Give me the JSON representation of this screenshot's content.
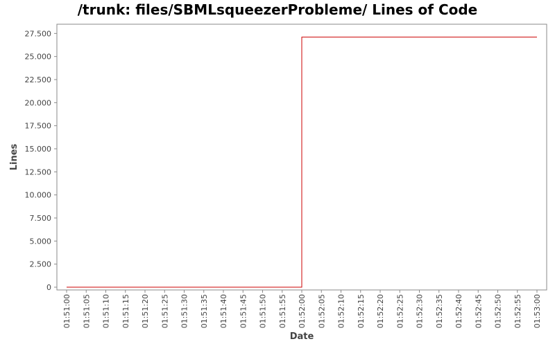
{
  "chart_data": {
    "type": "line",
    "title": "/trunk: files/SBMLsqueezerProbleme/ Lines of Code",
    "xlabel": "Date",
    "ylabel": "Lines",
    "x_ticks": [
      "01:51:00",
      "01:51:05",
      "01:51:10",
      "01:51:15",
      "01:51:20",
      "01:51:25",
      "01:51:30",
      "01:51:35",
      "01:51:40",
      "01:51:45",
      "01:51:50",
      "01:51:55",
      "01:52:00",
      "01:52:05",
      "01:52:10",
      "01:52:15",
      "01:52:20",
      "01:52:25",
      "01:52:30",
      "01:52:35",
      "01:52:40",
      "01:52:45",
      "01:52:50",
      "01:52:55",
      "01:53:00"
    ],
    "y_ticks": [
      "0",
      "2.500",
      "5.000",
      "7.500",
      "10.000",
      "12.500",
      "15.000",
      "17.500",
      "20.000",
      "22.500",
      "25.000",
      "27.500"
    ],
    "xlim": [
      "01:51:00",
      "01:53:00"
    ],
    "ylim": [
      0,
      28500
    ],
    "step": "post",
    "series": [
      {
        "color": "#cc0000",
        "points": [
          {
            "x": "01:51:00",
            "y": 0
          },
          {
            "x": "01:52:00",
            "y": 27100
          },
          {
            "x": "01:53:00",
            "y": 27100
          }
        ]
      }
    ],
    "grid": false,
    "legend": "none"
  }
}
